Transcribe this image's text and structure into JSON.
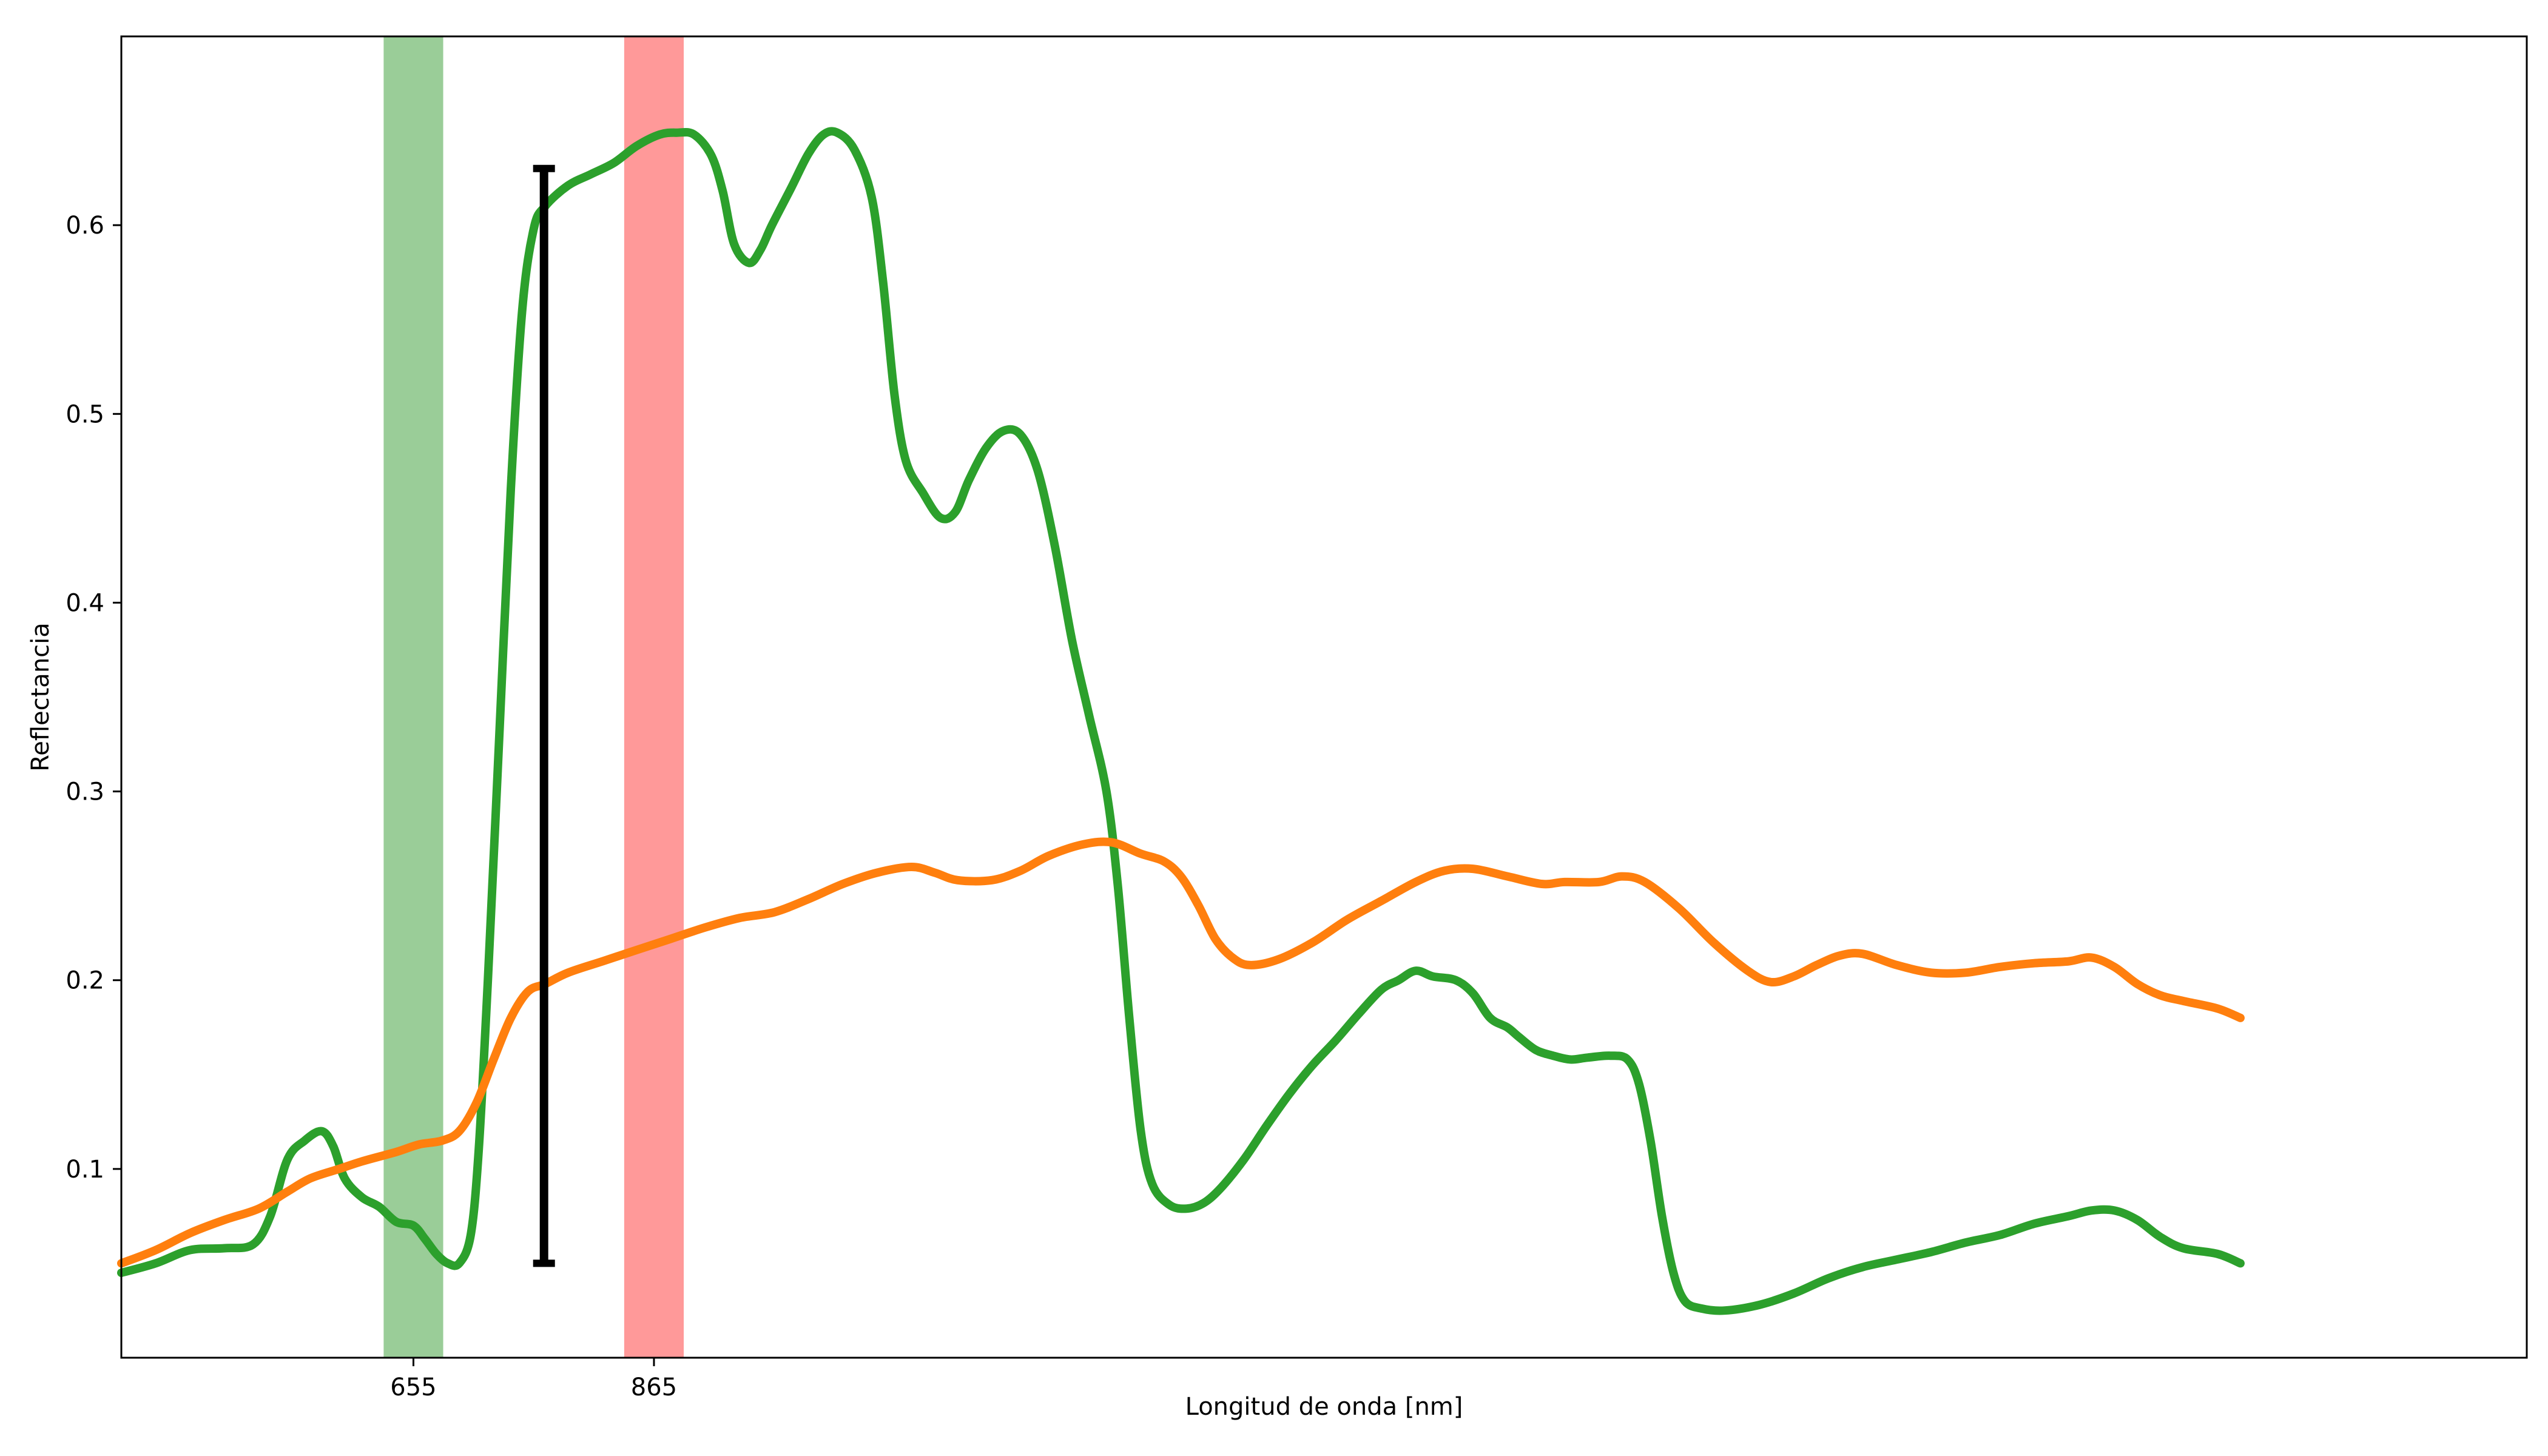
{
  "chart_data": {
    "type": "line",
    "title": "",
    "xlabel": "Longitud de onda [nm]",
    "ylabel": "Reflectancia",
    "xlim": [
      400,
      2500
    ],
    "ylim": [
      0,
      0.7
    ],
    "grid": false,
    "x_ticks": [
      {
        "value": 655,
        "label": "655"
      },
      {
        "value": 865,
        "label": "865"
      }
    ],
    "y_ticks": [
      {
        "value": 0.1,
        "label": "0.1"
      },
      {
        "value": 0.2,
        "label": "0.2"
      },
      {
        "value": 0.3,
        "label": "0.3"
      },
      {
        "value": 0.4,
        "label": "0.4"
      },
      {
        "value": 0.5,
        "label": "0.5"
      },
      {
        "value": 0.6,
        "label": "0.6"
      }
    ],
    "bands": [
      {
        "x_start": 629,
        "x_end": 681,
        "color": "#9acd98"
      },
      {
        "x_start": 839,
        "x_end": 891,
        "color": "#ff9999"
      }
    ],
    "error_bar": {
      "x": 769,
      "y_low": 0.05,
      "y_high": 0.63,
      "color": "#000000"
    },
    "series": [
      {
        "color": "#2ca02c",
        "points": [
          [
            400,
            0.045
          ],
          [
            430,
            0.05
          ],
          [
            460,
            0.057
          ],
          [
            490,
            0.058
          ],
          [
            515,
            0.06
          ],
          [
            530,
            0.075
          ],
          [
            545,
            0.105
          ],
          [
            560,
            0.115
          ],
          [
            575,
            0.12
          ],
          [
            585,
            0.112
          ],
          [
            595,
            0.095
          ],
          [
            610,
            0.085
          ],
          [
            625,
            0.08
          ],
          [
            640,
            0.072
          ],
          [
            655,
            0.07
          ],
          [
            665,
            0.063
          ],
          [
            675,
            0.055
          ],
          [
            685,
            0.05
          ],
          [
            695,
            0.05
          ],
          [
            705,
            0.065
          ],
          [
            712,
            0.11
          ],
          [
            720,
            0.2
          ],
          [
            730,
            0.33
          ],
          [
            740,
            0.46
          ],
          [
            750,
            0.555
          ],
          [
            760,
            0.598
          ],
          [
            770,
            0.61
          ],
          [
            790,
            0.621
          ],
          [
            810,
            0.627
          ],
          [
            830,
            0.633
          ],
          [
            850,
            0.642
          ],
          [
            870,
            0.648
          ],
          [
            885,
            0.649
          ],
          [
            900,
            0.648
          ],
          [
            915,
            0.637
          ],
          [
            925,
            0.618
          ],
          [
            935,
            0.59
          ],
          [
            948,
            0.58
          ],
          [
            958,
            0.587
          ],
          [
            968,
            0.6
          ],
          [
            985,
            0.62
          ],
          [
            1000,
            0.638
          ],
          [
            1013,
            0.648
          ],
          [
            1025,
            0.649
          ],
          [
            1040,
            0.64
          ],
          [
            1055,
            0.615
          ],
          [
            1065,
            0.57
          ],
          [
            1075,
            0.51
          ],
          [
            1085,
            0.475
          ],
          [
            1100,
            0.458
          ],
          [
            1115,
            0.445
          ],
          [
            1128,
            0.448
          ],
          [
            1140,
            0.465
          ],
          [
            1155,
            0.482
          ],
          [
            1170,
            0.491
          ],
          [
            1185,
            0.489
          ],
          [
            1200,
            0.47
          ],
          [
            1215,
            0.43
          ],
          [
            1230,
            0.38
          ],
          [
            1245,
            0.34
          ],
          [
            1260,
            0.3
          ],
          [
            1270,
            0.25
          ],
          [
            1280,
            0.18
          ],
          [
            1290,
            0.12
          ],
          [
            1300,
            0.092
          ],
          [
            1315,
            0.081
          ],
          [
            1330,
            0.079
          ],
          [
            1345,
            0.082
          ],
          [
            1360,
            0.09
          ],
          [
            1380,
            0.105
          ],
          [
            1400,
            0.123
          ],
          [
            1420,
            0.14
          ],
          [
            1440,
            0.155
          ],
          [
            1460,
            0.168
          ],
          [
            1480,
            0.182
          ],
          [
            1500,
            0.195
          ],
          [
            1515,
            0.2
          ],
          [
            1530,
            0.205
          ],
          [
            1545,
            0.202
          ],
          [
            1565,
            0.2
          ],
          [
            1580,
            0.193
          ],
          [
            1595,
            0.18
          ],
          [
            1610,
            0.175
          ],
          [
            1620,
            0.17
          ],
          [
            1635,
            0.163
          ],
          [
            1650,
            0.16
          ],
          [
            1665,
            0.158
          ],
          [
            1680,
            0.159
          ],
          [
            1700,
            0.16
          ],
          [
            1715,
            0.158
          ],
          [
            1725,
            0.145
          ],
          [
            1735,
            0.115
          ],
          [
            1745,
            0.075
          ],
          [
            1755,
            0.045
          ],
          [
            1765,
            0.03
          ],
          [
            1780,
            0.026
          ],
          [
            1800,
            0.025
          ],
          [
            1830,
            0.028
          ],
          [
            1860,
            0.034
          ],
          [
            1890,
            0.042
          ],
          [
            1920,
            0.048
          ],
          [
            1950,
            0.052
          ],
          [
            1980,
            0.056
          ],
          [
            2010,
            0.061
          ],
          [
            2040,
            0.065
          ],
          [
            2070,
            0.071
          ],
          [
            2100,
            0.075
          ],
          [
            2120,
            0.078
          ],
          [
            2140,
            0.078
          ],
          [
            2160,
            0.073
          ],
          [
            2180,
            0.064
          ],
          [
            2200,
            0.058
          ],
          [
            2230,
            0.055
          ],
          [
            2250,
            0.05
          ]
        ]
      },
      {
        "color": "#ff7f0e",
        "points": [
          [
            400,
            0.05
          ],
          [
            430,
            0.057
          ],
          [
            460,
            0.066
          ],
          [
            490,
            0.073
          ],
          [
            520,
            0.079
          ],
          [
            545,
            0.088
          ],
          [
            565,
            0.095
          ],
          [
            590,
            0.1
          ],
          [
            610,
            0.104
          ],
          [
            640,
            0.109
          ],
          [
            660,
            0.113
          ],
          [
            680,
            0.115
          ],
          [
            695,
            0.12
          ],
          [
            710,
            0.135
          ],
          [
            725,
            0.158
          ],
          [
            740,
            0.18
          ],
          [
            755,
            0.194
          ],
          [
            770,
            0.198
          ],
          [
            790,
            0.204
          ],
          [
            820,
            0.21
          ],
          [
            850,
            0.216
          ],
          [
            880,
            0.222
          ],
          [
            910,
            0.228
          ],
          [
            940,
            0.233
          ],
          [
            970,
            0.236
          ],
          [
            1000,
            0.243
          ],
          [
            1030,
            0.251
          ],
          [
            1060,
            0.257
          ],
          [
            1090,
            0.26
          ],
          [
            1110,
            0.257
          ],
          [
            1130,
            0.253
          ],
          [
            1160,
            0.253
          ],
          [
            1185,
            0.258
          ],
          [
            1210,
            0.266
          ],
          [
            1240,
            0.272
          ],
          [
            1265,
            0.273
          ],
          [
            1290,
            0.267
          ],
          [
            1310,
            0.263
          ],
          [
            1325,
            0.255
          ],
          [
            1340,
            0.24
          ],
          [
            1355,
            0.222
          ],
          [
            1370,
            0.212
          ],
          [
            1385,
            0.208
          ],
          [
            1410,
            0.211
          ],
          [
            1440,
            0.22
          ],
          [
            1470,
            0.232
          ],
          [
            1500,
            0.242
          ],
          [
            1530,
            0.252
          ],
          [
            1555,
            0.258
          ],
          [
            1580,
            0.259
          ],
          [
            1610,
            0.255
          ],
          [
            1640,
            0.251
          ],
          [
            1660,
            0.252
          ],
          [
            1690,
            0.252
          ],
          [
            1710,
            0.255
          ],
          [
            1730,
            0.252
          ],
          [
            1760,
            0.238
          ],
          [
            1790,
            0.22
          ],
          [
            1820,
            0.205
          ],
          [
            1840,
            0.199
          ],
          [
            1860,
            0.202
          ],
          [
            1880,
            0.208
          ],
          [
            1900,
            0.213
          ],
          [
            1920,
            0.214
          ],
          [
            1950,
            0.208
          ],
          [
            1980,
            0.204
          ],
          [
            2010,
            0.204
          ],
          [
            2040,
            0.207
          ],
          [
            2070,
            0.209
          ],
          [
            2100,
            0.21
          ],
          [
            2120,
            0.212
          ],
          [
            2140,
            0.207
          ],
          [
            2160,
            0.198
          ],
          [
            2180,
            0.192
          ],
          [
            2200,
            0.189
          ],
          [
            2230,
            0.185
          ],
          [
            2250,
            0.18
          ]
        ]
      }
    ]
  }
}
